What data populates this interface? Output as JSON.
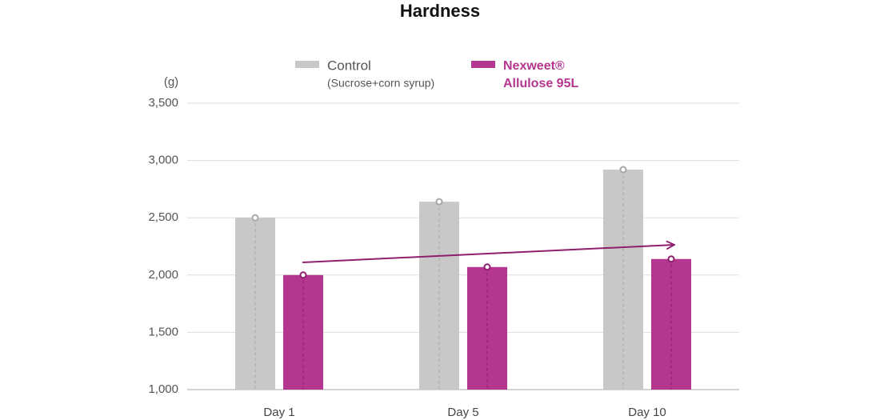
{
  "chart_data": {
    "type": "bar",
    "title": "Hardness",
    "y_label": "(g)",
    "categories": [
      "Day 1",
      "Day 5",
      "Day 10"
    ],
    "series": [
      {
        "name": "Control",
        "name_detail": "(Sucrose+corn syrup)",
        "color": "#c8c8c8",
        "marker_color": "#a8a8a8",
        "values": [
          2500,
          2640,
          2920
        ]
      },
      {
        "name": "Nexweet®",
        "name_detail": "Allulose 95L",
        "color": "#b5368f",
        "marker_color": "#8e1f6e",
        "values": [
          2000,
          2070,
          2140
        ]
      }
    ],
    "ylim": [
      1000,
      3500
    ],
    "yticks": [
      {
        "value": 1000,
        "label": "1,000"
      },
      {
        "value": 1500,
        "label": "1,500"
      },
      {
        "value": 2000,
        "label": "2,000"
      },
      {
        "value": 2500,
        "label": "2,500"
      },
      {
        "value": 3000,
        "label": "3,000"
      },
      {
        "value": 3500,
        "label": "3,500"
      }
    ],
    "grid": true
  }
}
